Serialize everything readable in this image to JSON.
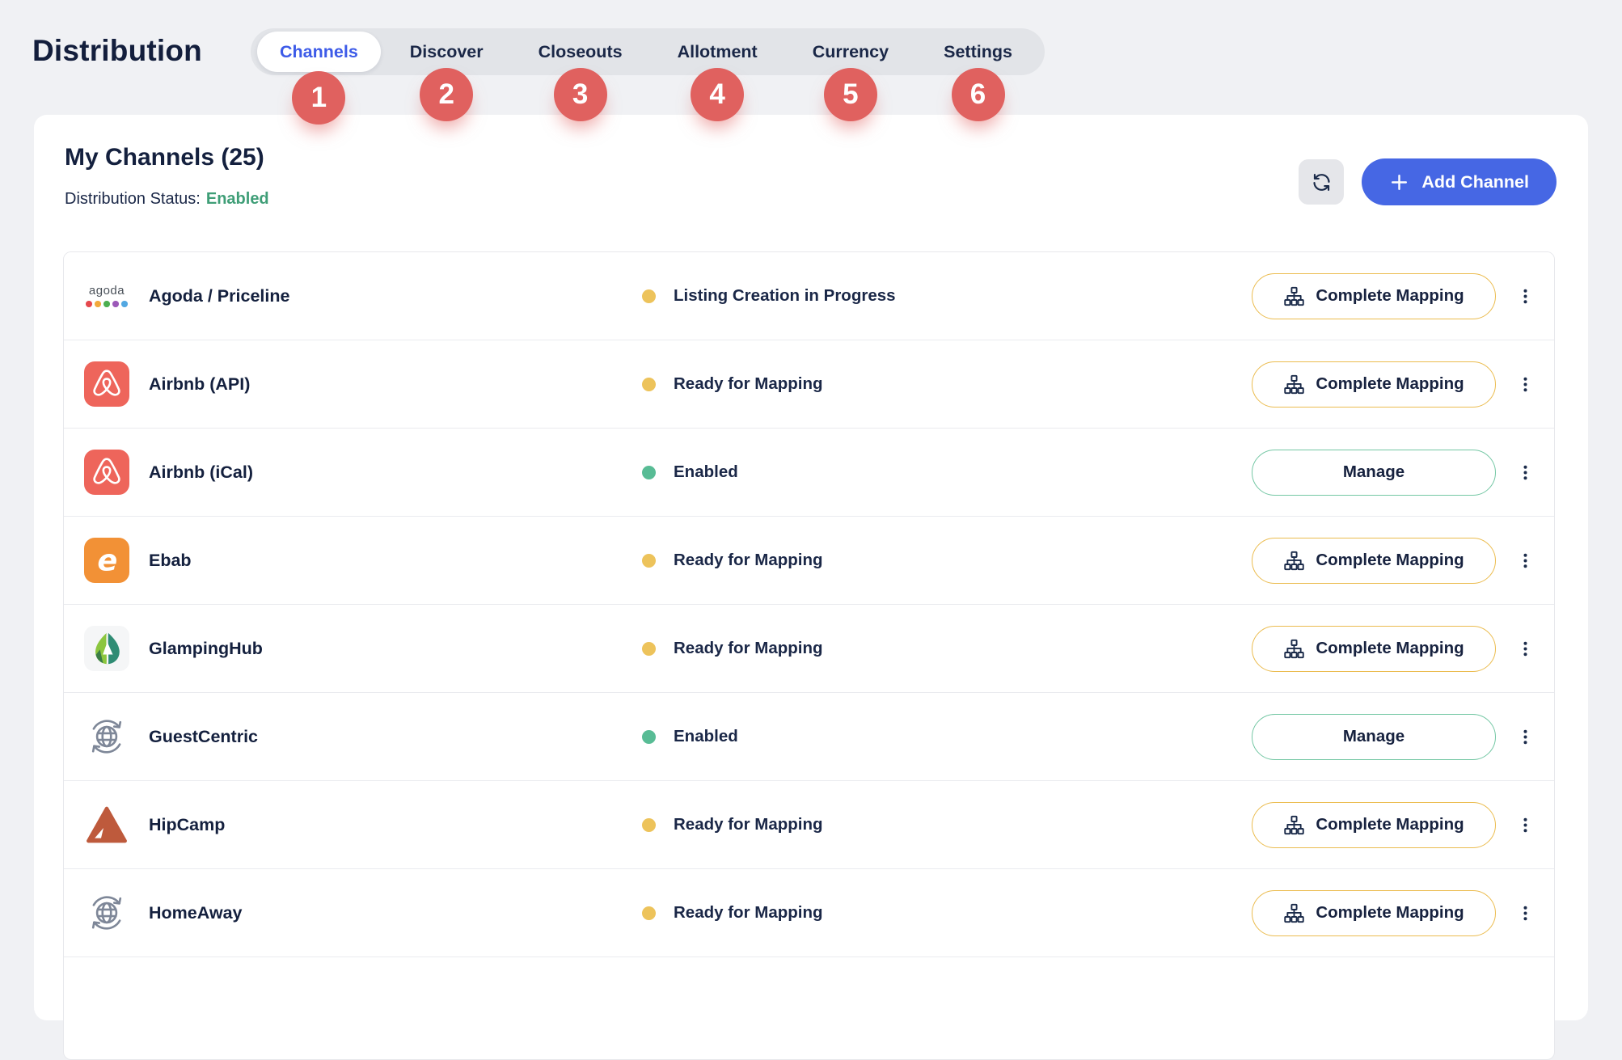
{
  "page": {
    "title": "Distribution"
  },
  "tabs": [
    {
      "label": "Channels",
      "badge": "1",
      "active": true
    },
    {
      "label": "Discover",
      "badge": "2",
      "active": false
    },
    {
      "label": "Closeouts",
      "badge": "3",
      "active": false
    },
    {
      "label": "Allotment",
      "badge": "4",
      "active": false
    },
    {
      "label": "Currency",
      "badge": "5",
      "active": false
    },
    {
      "label": "Settings",
      "badge": "6",
      "active": false
    }
  ],
  "panel": {
    "heading": "My Channels (25)",
    "status_label": "Distribution Status:",
    "status_value": "Enabled",
    "add_channel_label": "Add Channel"
  },
  "icons": {
    "agoda_wordmark": "agoda",
    "agoda_dot_colors": [
      "#E5484D",
      "#F2A93B",
      "#4CAF50",
      "#9C59B8",
      "#53A8E2"
    ],
    "ebab_glyph": "e"
  },
  "channels": [
    {
      "name": "Agoda / Priceline",
      "icon": "agoda",
      "status": "Listing Creation in Progress",
      "status_color": "#EDC35B",
      "action": "Complete Mapping",
      "action_style": "mapping"
    },
    {
      "name": "Airbnb (API)",
      "icon": "airbnb",
      "status": "Ready for Mapping",
      "status_color": "#EDC35B",
      "action": "Complete Mapping",
      "action_style": "mapping"
    },
    {
      "name": "Airbnb (iCal)",
      "icon": "airbnb",
      "status": "Enabled",
      "status_color": "#58BC95",
      "action": "Manage",
      "action_style": "manage"
    },
    {
      "name": "Ebab",
      "icon": "ebab",
      "status": "Ready for Mapping",
      "status_color": "#EDC35B",
      "action": "Complete Mapping",
      "action_style": "mapping"
    },
    {
      "name": "GlampingHub",
      "icon": "glampinghub",
      "status": "Ready for Mapping",
      "status_color": "#EDC35B",
      "action": "Complete Mapping",
      "action_style": "mapping"
    },
    {
      "name": "GuestCentric",
      "icon": "globe-sync",
      "status": "Enabled",
      "status_color": "#58BC95",
      "action": "Manage",
      "action_style": "manage"
    },
    {
      "name": "HipCamp",
      "icon": "hipcamp",
      "status": "Ready for Mapping",
      "status_color": "#EDC35B",
      "action": "Complete Mapping",
      "action_style": "mapping"
    },
    {
      "name": "HomeAway",
      "icon": "globe-sync",
      "status": "Ready for Mapping",
      "status_color": "#EDC35B",
      "action": "Complete Mapping",
      "action_style": "mapping"
    }
  ],
  "colors": {
    "accent_blue": "#4667E4",
    "active_tab_text": "#3D5BE8",
    "badge_red": "#E0615F",
    "status_yellow": "#EDC35B",
    "status_green": "#58BC95",
    "mapping_border": "#EBBC4F",
    "manage_border": "#74C7A4",
    "enabled_text_green": "#3F9E77"
  }
}
